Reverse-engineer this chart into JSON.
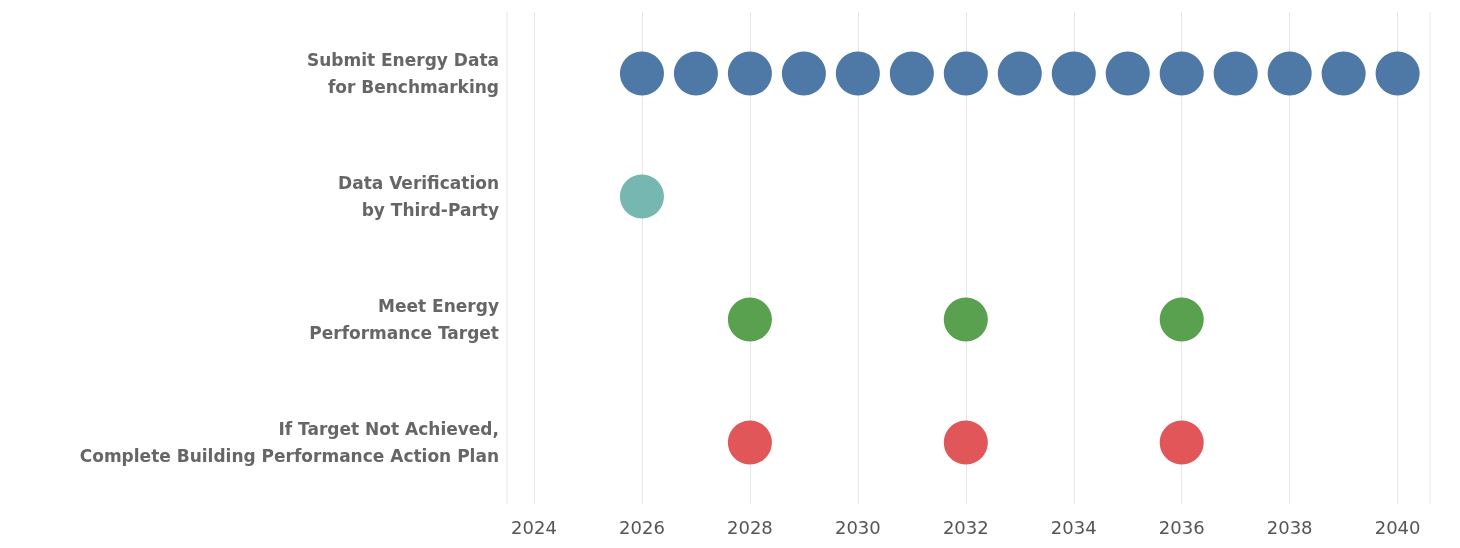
{
  "chart_data": {
    "type": "scatter",
    "orientation": "horizontal",
    "categories": [
      "Submit Energy Data\nfor Benchmarking",
      "Data Verification\nby Third-Party",
      "Meet Energy\nPerformance Target",
      "If Target Not Achieved,\nComplete Building Performance Action Plan"
    ],
    "series": [
      {
        "colors": [
          "#4e79a7",
          "#76b7b2",
          "#59a14f",
          "#e15759"
        ],
        "values": [
          2026,
          2026,
          2028,
          2028
        ]
      },
      {
        "colors": [
          "#4e79a7",
          null,
          "#59a14f",
          "#e15759"
        ],
        "values": [
          2027,
          null,
          2032,
          2032
        ]
      },
      {
        "colors": [
          "#4e79a7",
          null,
          "#59a14f",
          "#e15759"
        ],
        "values": [
          2028,
          null,
          2036,
          2036
        ]
      },
      {
        "color": "#4e79a7",
        "values": [
          2029,
          null,
          null,
          null
        ]
      },
      {
        "color": "#4e79a7",
        "values": [
          2030,
          null,
          null,
          null
        ]
      },
      {
        "color": "#4e79a7",
        "values": [
          2031,
          null,
          null,
          null
        ]
      },
      {
        "color": "#4e79a7",
        "values": [
          2032,
          null,
          null,
          null
        ]
      },
      {
        "color": "#4e79a7",
        "values": [
          2033,
          null,
          null,
          null
        ]
      },
      {
        "color": "#4e79a7",
        "values": [
          2034,
          null,
          null,
          null
        ]
      },
      {
        "color": "#4e79a7",
        "values": [
          2035,
          null,
          null,
          null
        ]
      },
      {
        "color": "#4e79a7",
        "values": [
          2036,
          null,
          null,
          null
        ]
      },
      {
        "color": "#4e79a7",
        "values": [
          2037,
          null,
          null,
          null
        ]
      },
      {
        "color": "#4e79a7",
        "values": [
          2038,
          null,
          null,
          null
        ]
      },
      {
        "color": "#4e79a7",
        "values": [
          2039,
          null,
          null,
          null
        ]
      },
      {
        "color": "#4e79a7",
        "values": [
          2040,
          null,
          null,
          null
        ]
      }
    ],
    "xlim": [
      2023.5,
      2040.6
    ],
    "xticks": [
      2024,
      2026,
      2028,
      2030,
      2032,
      2034,
      2036,
      2038,
      2040
    ],
    "grid": "x",
    "marker": "circle"
  }
}
